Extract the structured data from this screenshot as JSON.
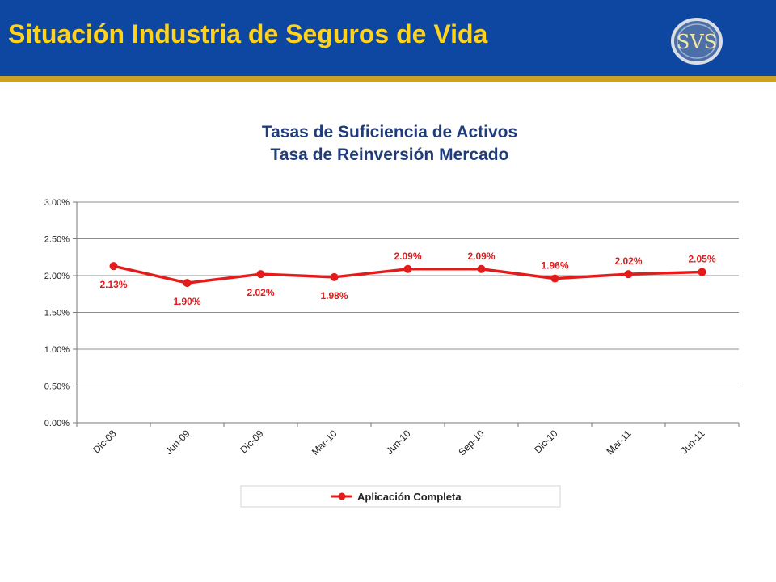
{
  "header": {
    "title": "Situación Industria de Seguros de Vida",
    "logo_text": "SVS"
  },
  "colors": {
    "header_bg": "#0d47a1",
    "header_stripe": "#c9a227",
    "title_text": "#ffd21c",
    "chart_title": "#1f3d7a",
    "series": "#e31b1b"
  },
  "chart_data": {
    "type": "line",
    "title": "Tasas de Suficiencia de Activos",
    "subtitle": "Tasa de Reinversión Mercado",
    "xlabel": "",
    "ylabel": "",
    "categories": [
      "Dic-08",
      "Jun-09",
      "Dic-09",
      "Mar-10",
      "Jun-10",
      "Sep-10",
      "Dic-10",
      "Mar-11",
      "Jun-11"
    ],
    "y_ticks": [
      "0.00%",
      "0.50%",
      "1.00%",
      "1.50%",
      "2.00%",
      "2.50%",
      "3.00%"
    ],
    "ylim": [
      0,
      3
    ],
    "grid": true,
    "legend_position": "bottom",
    "series": [
      {
        "name": "Aplicación Completa",
        "values": [
          2.13,
          1.9,
          2.02,
          1.98,
          2.09,
          2.09,
          1.96,
          2.02,
          2.05
        ],
        "labels": [
          "2.13%",
          "1.90%",
          "2.02%",
          "1.98%",
          "2.09%",
          "2.09%",
          "1.96%",
          "2.02%",
          "2.05%"
        ]
      }
    ]
  }
}
